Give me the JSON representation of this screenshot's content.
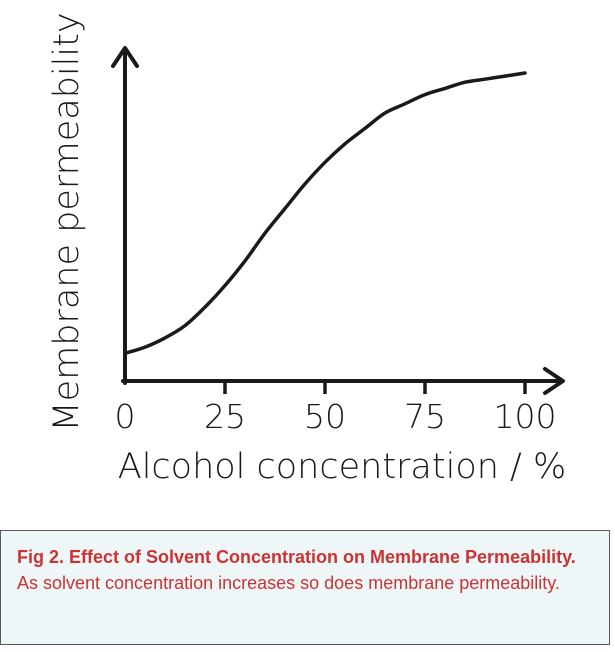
{
  "chart_data": {
    "type": "line",
    "xlabel": "Alcohol concentration / %",
    "ylabel": "Membrane permeability",
    "xticks": [
      "0",
      "25",
      "50",
      "75",
      "100"
    ],
    "xlim": [
      0,
      100
    ],
    "grid": false,
    "series": [
      {
        "x": [
          0,
          5,
          10,
          15,
          20,
          25,
          30,
          35,
          40,
          45,
          50,
          55,
          60,
          65,
          70,
          75,
          80,
          85,
          90,
          95,
          100
        ],
        "y": [
          0.09,
          0.11,
          0.14,
          0.18,
          0.24,
          0.31,
          0.39,
          0.48,
          0.56,
          0.64,
          0.71,
          0.77,
          0.82,
          0.87,
          0.9,
          0.93,
          0.95,
          0.97,
          0.98,
          0.99,
          1.0
        ]
      }
    ]
  },
  "caption": {
    "bold_text": "Fig 2. Effect of Solvent Concentration on Membrane Permeability.",
    "text": " As solvent concentration increases so does membrane permeability."
  },
  "colors": {
    "line": "#1a1a1a",
    "caption_text": "#cc3333",
    "caption_bg": "#eef6f8"
  }
}
